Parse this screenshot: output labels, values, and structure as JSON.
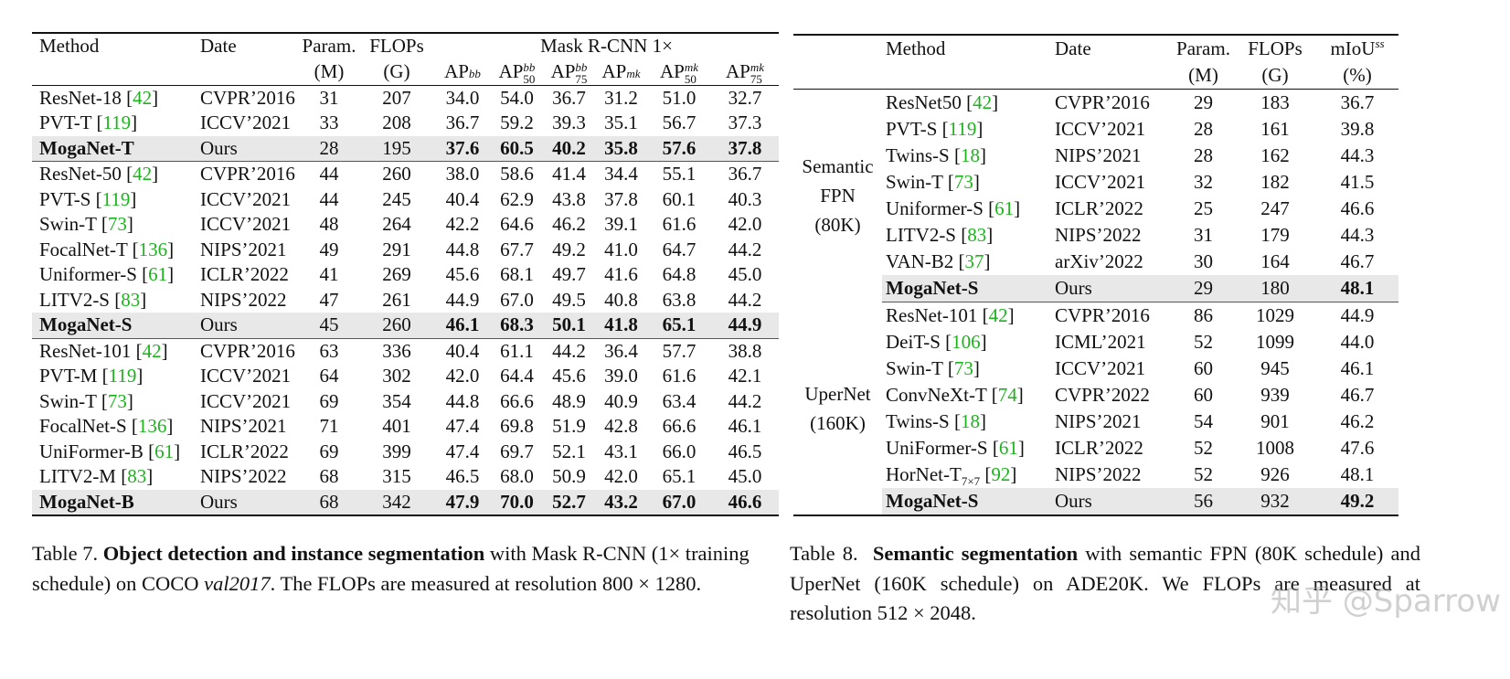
{
  "table7": {
    "header": {
      "method": "Method",
      "date": "Date",
      "param": "Param.",
      "param_unit": "(M)",
      "flops": "FLOPs",
      "flops_unit": "(G)",
      "group": "Mask R-CNN 1×",
      "metrics": [
        {
          "base": "AP",
          "sup": "bb",
          "sub": ""
        },
        {
          "base": "AP",
          "sup": "bb",
          "sub": "50"
        },
        {
          "base": "AP",
          "sup": "bb",
          "sub": "75"
        },
        {
          "base": "AP",
          "sup": "mk",
          "sub": ""
        },
        {
          "base": "AP",
          "sup": "mk",
          "sub": "50"
        },
        {
          "base": "AP",
          "sup": "mk",
          "sub": "75"
        }
      ]
    },
    "rows": [
      {
        "name": "ResNet-18",
        "ref": "42",
        "date": "CVPR’2016",
        "param": "31",
        "flops": "207",
        "vals": [
          "34.0",
          "54.0",
          "36.7",
          "31.2",
          "51.0",
          "32.7"
        ]
      },
      {
        "name": "PVT-T",
        "ref": "119",
        "date": "ICCV’2021",
        "param": "33",
        "flops": "208",
        "vals": [
          "36.7",
          "59.2",
          "39.3",
          "35.1",
          "56.7",
          "37.3"
        ]
      },
      {
        "name": "MogaNet-T",
        "ref": "",
        "date": "Ours",
        "param": "28",
        "flops": "195",
        "vals": [
          "37.6",
          "60.5",
          "40.2",
          "35.8",
          "57.6",
          "37.8"
        ],
        "ours": true,
        "end": true
      },
      {
        "name": "ResNet-50",
        "ref": "42",
        "date": "CVPR’2016",
        "param": "44",
        "flops": "260",
        "vals": [
          "38.0",
          "58.6",
          "41.4",
          "34.4",
          "55.1",
          "36.7"
        ]
      },
      {
        "name": "PVT-S",
        "ref": "119",
        "date": "ICCV’2021",
        "param": "44",
        "flops": "245",
        "vals": [
          "40.4",
          "62.9",
          "43.8",
          "37.8",
          "60.1",
          "40.3"
        ]
      },
      {
        "name": "Swin-T",
        "ref": "73",
        "date": "ICCV’2021",
        "param": "48",
        "flops": "264",
        "vals": [
          "42.2",
          "64.6",
          "46.2",
          "39.1",
          "61.6",
          "42.0"
        ]
      },
      {
        "name": "FocalNet-T",
        "ref": "136",
        "date": "NIPS’2021",
        "param": "49",
        "flops": "291",
        "vals": [
          "44.8",
          "67.7",
          "49.2",
          "41.0",
          "64.7",
          "44.2"
        ]
      },
      {
        "name": "Uniformer-S",
        "ref": "61",
        "date": "ICLR’2022",
        "param": "41",
        "flops": "269",
        "vals": [
          "45.6",
          "68.1",
          "49.7",
          "41.6",
          "64.8",
          "45.0"
        ]
      },
      {
        "name": "LITV2-S",
        "ref": "83",
        "date": "NIPS’2022",
        "param": "47",
        "flops": "261",
        "vals": [
          "44.9",
          "67.0",
          "49.5",
          "40.8",
          "63.8",
          "44.2"
        ]
      },
      {
        "name": "MogaNet-S",
        "ref": "",
        "date": "Ours",
        "param": "45",
        "flops": "260",
        "vals": [
          "46.1",
          "68.3",
          "50.1",
          "41.8",
          "65.1",
          "44.9"
        ],
        "ours": true,
        "end": true
      },
      {
        "name": "ResNet-101",
        "ref": "42",
        "date": "CVPR’2016",
        "param": "63",
        "flops": "336",
        "vals": [
          "40.4",
          "61.1",
          "44.2",
          "36.4",
          "57.7",
          "38.8"
        ]
      },
      {
        "name": "PVT-M",
        "ref": "119",
        "date": "ICCV’2021",
        "param": "64",
        "flops": "302",
        "vals": [
          "42.0",
          "64.4",
          "45.6",
          "39.0",
          "61.6",
          "42.1"
        ]
      },
      {
        "name": "Swin-T",
        "ref": "73",
        "date": "ICCV’2021",
        "param": "69",
        "flops": "354",
        "vals": [
          "44.8",
          "66.6",
          "48.9",
          "40.9",
          "63.4",
          "44.2"
        ]
      },
      {
        "name": "FocalNet-S",
        "ref": "136",
        "date": "NIPS’2021",
        "param": "71",
        "flops": "401",
        "vals": [
          "47.4",
          "69.8",
          "51.9",
          "42.8",
          "66.6",
          "46.1"
        ]
      },
      {
        "name": "UniFormer-B",
        "ref": "61",
        "date": "ICLR’2022",
        "param": "69",
        "flops": "399",
        "vals": [
          "47.4",
          "69.7",
          "52.1",
          "43.1",
          "66.0",
          "46.5"
        ]
      },
      {
        "name": "LITV2-M",
        "ref": "83",
        "date": "NIPS’2022",
        "param": "68",
        "flops": "315",
        "vals": [
          "46.5",
          "68.0",
          "50.9",
          "42.0",
          "65.1",
          "45.0"
        ]
      },
      {
        "name": "MogaNet-B",
        "ref": "",
        "date": "Ours",
        "param": "68",
        "flops": "342",
        "vals": [
          "47.9",
          "70.0",
          "52.7",
          "43.2",
          "67.0",
          "46.6"
        ],
        "ours": true
      }
    ],
    "caption": {
      "label": "Table 7.",
      "bold": "Object detection and instance segmentation",
      "text1": " with Mask R-CNN (1× training schedule) on COCO ",
      "italic": "val2017",
      "text2": ". The FLOPs are measured at resolution 800 × 1280."
    }
  },
  "table8": {
    "header": {
      "method": "Method",
      "date": "Date",
      "param": "Param.",
      "param_unit": "(M)",
      "flops": "FLOPs",
      "flops_unit": "(G)",
      "miou": "mIoU",
      "miou_sup": "ss",
      "miou_unit": "(%)"
    },
    "groups": [
      {
        "label": [
          "Semantic",
          "FPN",
          "(80K)"
        ],
        "rows": [
          {
            "name": "ResNet50",
            "ref": "42",
            "date": "CVPR’2016",
            "param": "29",
            "flops": "183",
            "miou": "36.7"
          },
          {
            "name": "PVT-S",
            "ref": "119",
            "date": "ICCV’2021",
            "param": "28",
            "flops": "161",
            "miou": "39.8"
          },
          {
            "name": "Twins-S",
            "ref": "18",
            "date": "NIPS’2021",
            "param": "28",
            "flops": "162",
            "miou": "44.3"
          },
          {
            "name": "Swin-T",
            "ref": "73",
            "date": "ICCV’2021",
            "param": "32",
            "flops": "182",
            "miou": "41.5"
          },
          {
            "name": "Uniformer-S",
            "ref": "61",
            "date": "ICLR’2022",
            "param": "25",
            "flops": "247",
            "miou": "46.6"
          },
          {
            "name": "LITV2-S",
            "ref": "83",
            "date": "NIPS’2022",
            "param": "31",
            "flops": "179",
            "miou": "44.3"
          },
          {
            "name": "VAN-B2",
            "ref": "37",
            "date": "arXiv’2022",
            "param": "30",
            "flops": "164",
            "miou": "46.7"
          },
          {
            "name": "MogaNet-S",
            "ref": "",
            "date": "Ours",
            "param": "29",
            "flops": "180",
            "miou": "48.1",
            "ours": true
          }
        ]
      },
      {
        "label": [
          "UperNet",
          "(160K)"
        ],
        "rows": [
          {
            "name": "ResNet-101",
            "ref": "42",
            "date": "CVPR’2016",
            "param": "86",
            "flops": "1029",
            "miou": "44.9"
          },
          {
            "name": "DeiT-S",
            "ref": "106",
            "date": "ICML’2021",
            "param": "52",
            "flops": "1099",
            "miou": "44.0"
          },
          {
            "name": "Swin-T",
            "ref": "73",
            "date": "ICCV’2021",
            "param": "60",
            "flops": "945",
            "miou": "46.1"
          },
          {
            "name": "ConvNeXt-T",
            "ref": "74",
            "date": "CVPR’2022",
            "param": "60",
            "flops": "939",
            "miou": "46.7"
          },
          {
            "name": "Twins-S",
            "ref": "18",
            "date": "NIPS’2021",
            "param": "54",
            "flops": "901",
            "miou": "46.2"
          },
          {
            "name": "UniFormer-S",
            "ref": "61",
            "date": "ICLR’2022",
            "param": "52",
            "flops": "1008",
            "miou": "47.6"
          },
          {
            "name": "HorNet-T",
            "sub": "7×7",
            "ref": "92",
            "date": "NIPS’2022",
            "param": "52",
            "flops": "926",
            "miou": "48.1"
          },
          {
            "name": "MogaNet-S",
            "ref": "",
            "date": "Ours",
            "param": "56",
            "flops": "932",
            "miou": "49.2",
            "ours": true
          }
        ]
      }
    ],
    "caption": {
      "label": "Table 8.",
      "bold": "Semantic segmentation",
      "text": " with semantic FPN (80K schedule) and UperNet (160K schedule) on ADE20K. We FLOPs are measured at resolution 512 × 2048."
    }
  },
  "watermark": "知乎 @Sparrow",
  "colors": {
    "citation": "#1db31d",
    "highlight_row": "#e8e8e8"
  }
}
